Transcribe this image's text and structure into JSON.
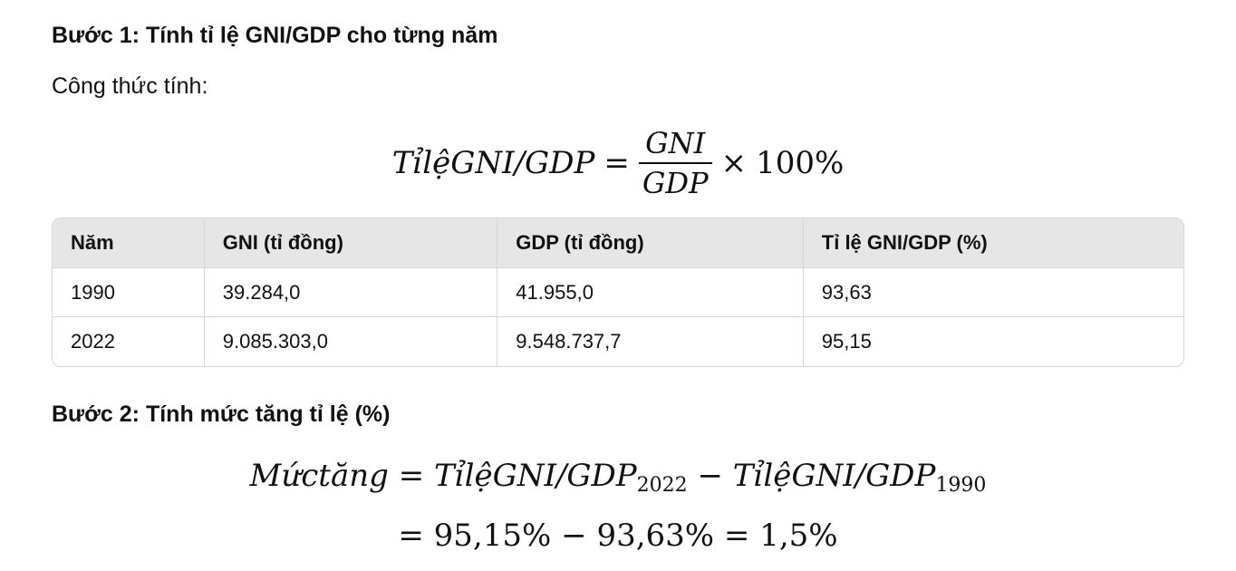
{
  "step1": {
    "title": "Bước 1: Tính tỉ lệ GNI/GDP cho từng năm",
    "intro": "Công thức tính:",
    "formula": {
      "lhs": "TỉlệGNI/GDP",
      "equals": "=",
      "numerator": "GNI",
      "denominator": "GDP",
      "times": "×",
      "factor": "100%"
    }
  },
  "table": {
    "headers": [
      "Năm",
      "GNI (tỉ đồng)",
      "GDP (tỉ đồng)",
      "Tỉ lệ GNI/GDP (%)"
    ],
    "rows": [
      [
        "1990",
        "39.284,0",
        "41.955,0",
        "93,63"
      ],
      [
        "2022",
        "9.085.303,0",
        "9.548.737,7",
        "95,15"
      ]
    ]
  },
  "step2": {
    "title": "Bước 2: Tính mức tăng tỉ lệ (%)",
    "formula": {
      "lhs": "Mứctăng",
      "equals": "=",
      "term1": "TỉlệGNI/GDP",
      "sub1": "2022",
      "minus": "−",
      "term2": "TỉlệGNI/GDP",
      "sub2": "1990"
    },
    "result": {
      "equals1": "=",
      "a": "95,15%",
      "minus": "−",
      "b": "93,63%",
      "equals2": "=",
      "c": "1,5%"
    }
  }
}
